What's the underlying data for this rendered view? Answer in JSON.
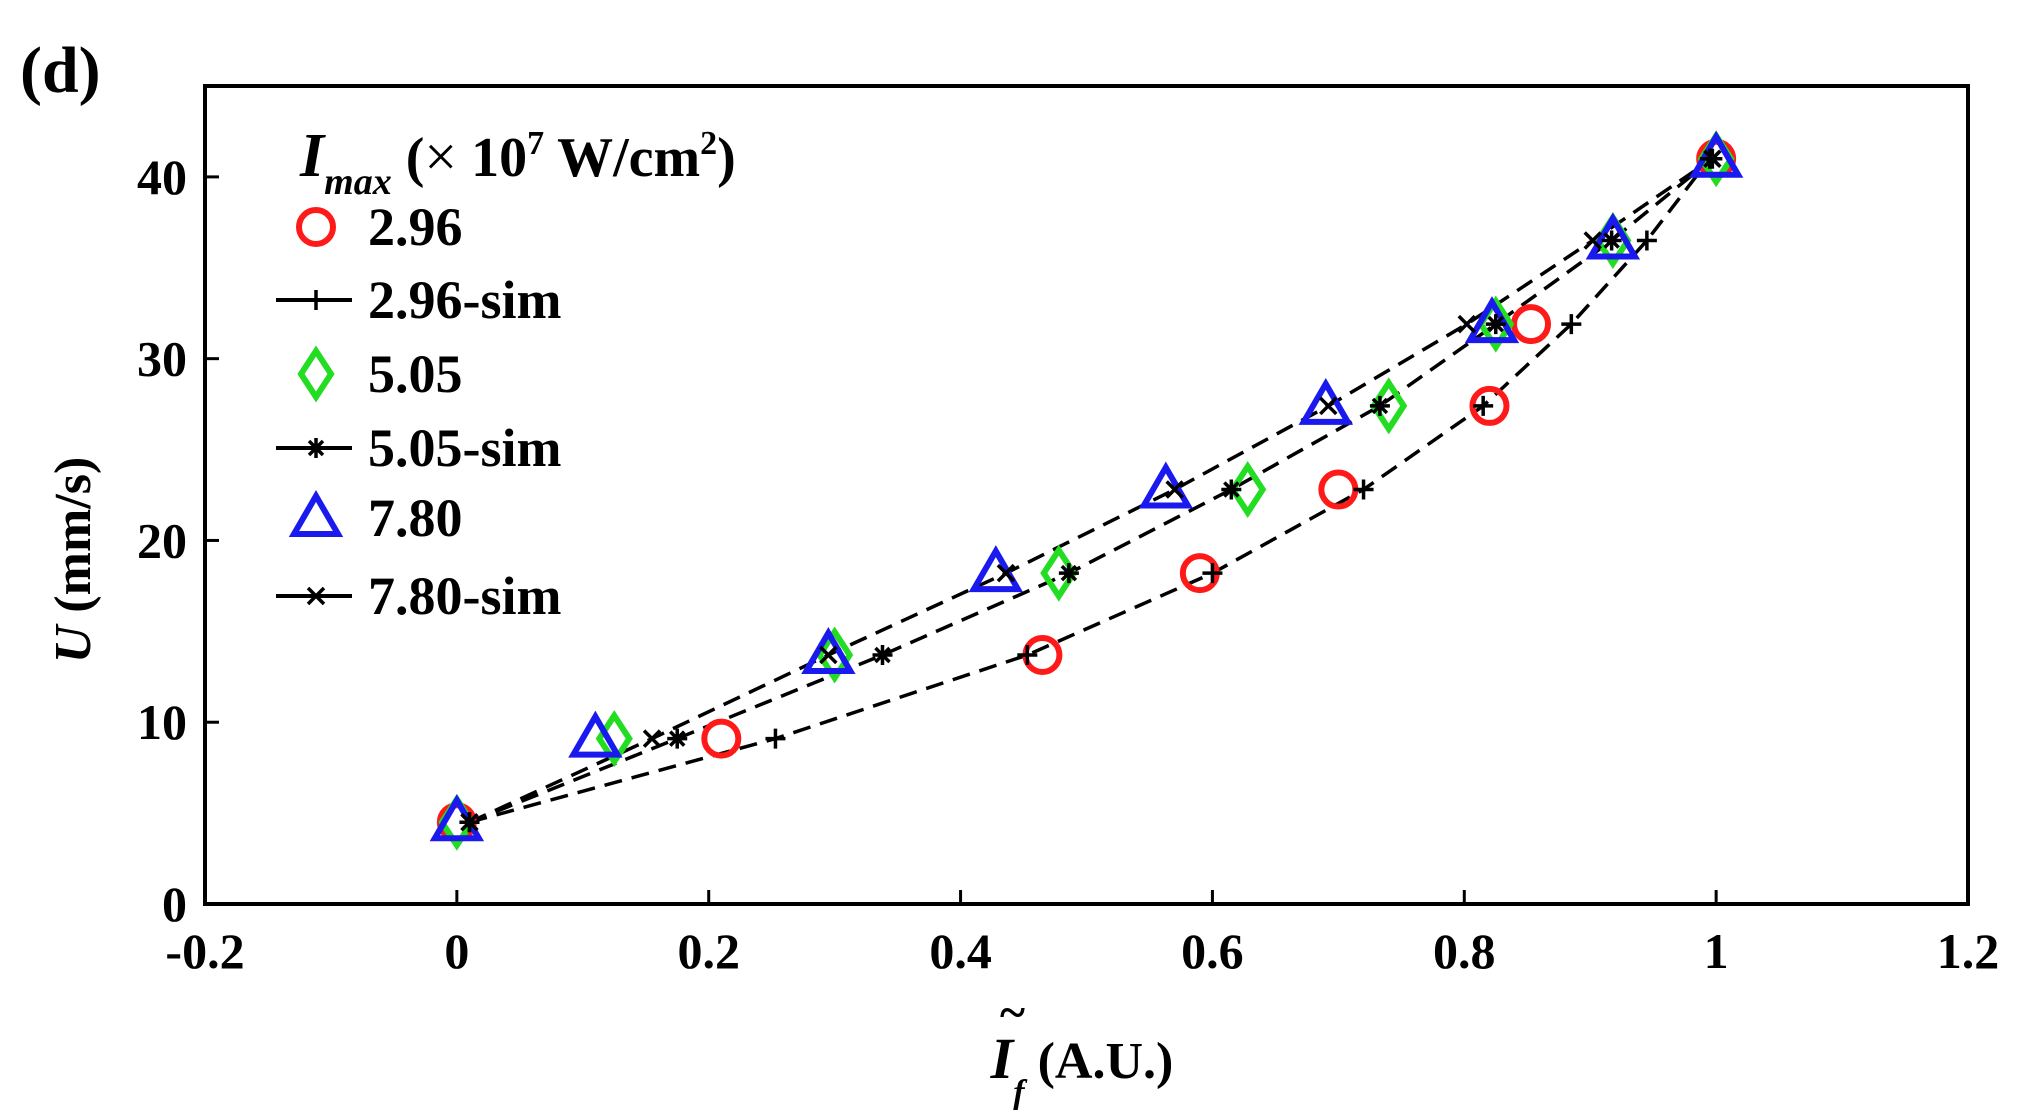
{
  "chart_data": {
    "type": "scatter",
    "panel_label": "(d)",
    "xlabel": {
      "symbol": "I",
      "tilde": "~",
      "subscript": "f",
      "unit": " (A.U.)"
    },
    "ylabel": {
      "symbol": "U",
      "unit": " (mm/s)"
    },
    "xlim": [
      -0.2,
      1.2
    ],
    "ylim": [
      0,
      45
    ],
    "xticks": [
      -0.2,
      0,
      0.2,
      0.4,
      0.6,
      0.8,
      1,
      1.2
    ],
    "xtick_labels": [
      "-0.2",
      "0",
      "0.2",
      "0.4",
      "0.6",
      "0.8",
      "1",
      "1.2"
    ],
    "yticks": [
      0,
      10,
      20,
      30,
      40
    ],
    "ytick_labels": [
      "0",
      "10",
      "20",
      "30",
      "40"
    ],
    "legend": {
      "position": "top-left",
      "title_symbol": "I",
      "title_subscript": "max",
      "title_open": " (",
      "title_times": "×",
      "title_ten": " 10",
      "title_exp": "7",
      "title_unit": " W/cm",
      "title_unit_exp": "2",
      "title_close": ")"
    },
    "series": [
      {
        "name": "2.96",
        "kind": "exp",
        "marker": "circle",
        "color": "#ff1a1a",
        "x": [
          0,
          0.21,
          0.465,
          0.59,
          0.7,
          0.82,
          0.853,
          1.0
        ],
        "y": [
          4.5,
          9.1,
          13.7,
          18.2,
          22.8,
          27.4,
          31.9,
          41.0
        ]
      },
      {
        "name": "2.96-sim",
        "kind": "sim",
        "marker": "plus",
        "color": "#000000",
        "x": [
          0.01,
          0.253,
          0.453,
          0.6,
          0.72,
          0.815,
          0.885,
          0.945,
          0.995
        ],
        "y": [
          4.5,
          9.1,
          13.7,
          18.2,
          22.8,
          27.4,
          31.9,
          36.5,
          41.0
        ]
      },
      {
        "name": "5.05",
        "kind": "exp",
        "marker": "diamond",
        "color": "#22dd22",
        "x": [
          0,
          0.125,
          0.3,
          0.478,
          0.628,
          0.74,
          0.825,
          0.918,
          1.0
        ],
        "y": [
          4.5,
          9.1,
          13.7,
          18.2,
          22.8,
          27.4,
          31.9,
          36.5,
          41.0
        ]
      },
      {
        "name": "5.05-sim",
        "kind": "sim",
        "marker": "asterisk",
        "color": "#000000",
        "x": [
          0.01,
          0.175,
          0.338,
          0.486,
          0.615,
          0.733,
          0.825,
          0.917,
          0.997
        ],
        "y": [
          4.5,
          9.1,
          13.7,
          18.2,
          22.8,
          27.4,
          31.9,
          36.5,
          41.0
        ]
      },
      {
        "name": "7.80",
        "kind": "exp",
        "marker": "triangle",
        "color": "#1a1aee",
        "x": [
          0,
          0.11,
          0.295,
          0.428,
          0.563,
          0.69,
          0.822,
          0.918,
          1.0
        ],
        "y": [
          4.5,
          9.1,
          13.7,
          18.2,
          22.8,
          27.4,
          31.9,
          36.5,
          41.0
        ]
      },
      {
        "name": "7.80-sim",
        "kind": "sim",
        "marker": "cross",
        "color": "#000000",
        "x": [
          0.01,
          0.155,
          0.295,
          0.436,
          0.57,
          0.692,
          0.802,
          0.902,
          0.997
        ],
        "y": [
          4.5,
          9.1,
          13.7,
          18.2,
          22.8,
          27.4,
          31.9,
          36.5,
          41.0
        ]
      }
    ]
  }
}
